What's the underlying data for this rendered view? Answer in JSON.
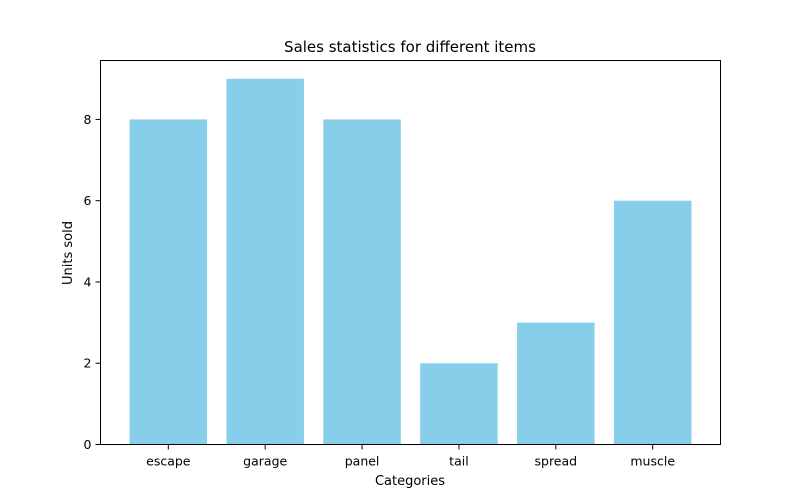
{
  "chart_data": {
    "type": "bar",
    "title": "Sales statistics for different items",
    "xlabel": "Categories",
    "ylabel": "Units sold",
    "categories": [
      "escape",
      "garage",
      "panel",
      "tail",
      "spread",
      "muscle"
    ],
    "values": [
      8,
      9,
      8,
      2,
      3,
      6
    ],
    "ylim": [
      0,
      9.45
    ],
    "yticks": [
      0,
      2,
      4,
      6,
      8
    ],
    "grid": false,
    "bar_color": "#87CEEB"
  }
}
